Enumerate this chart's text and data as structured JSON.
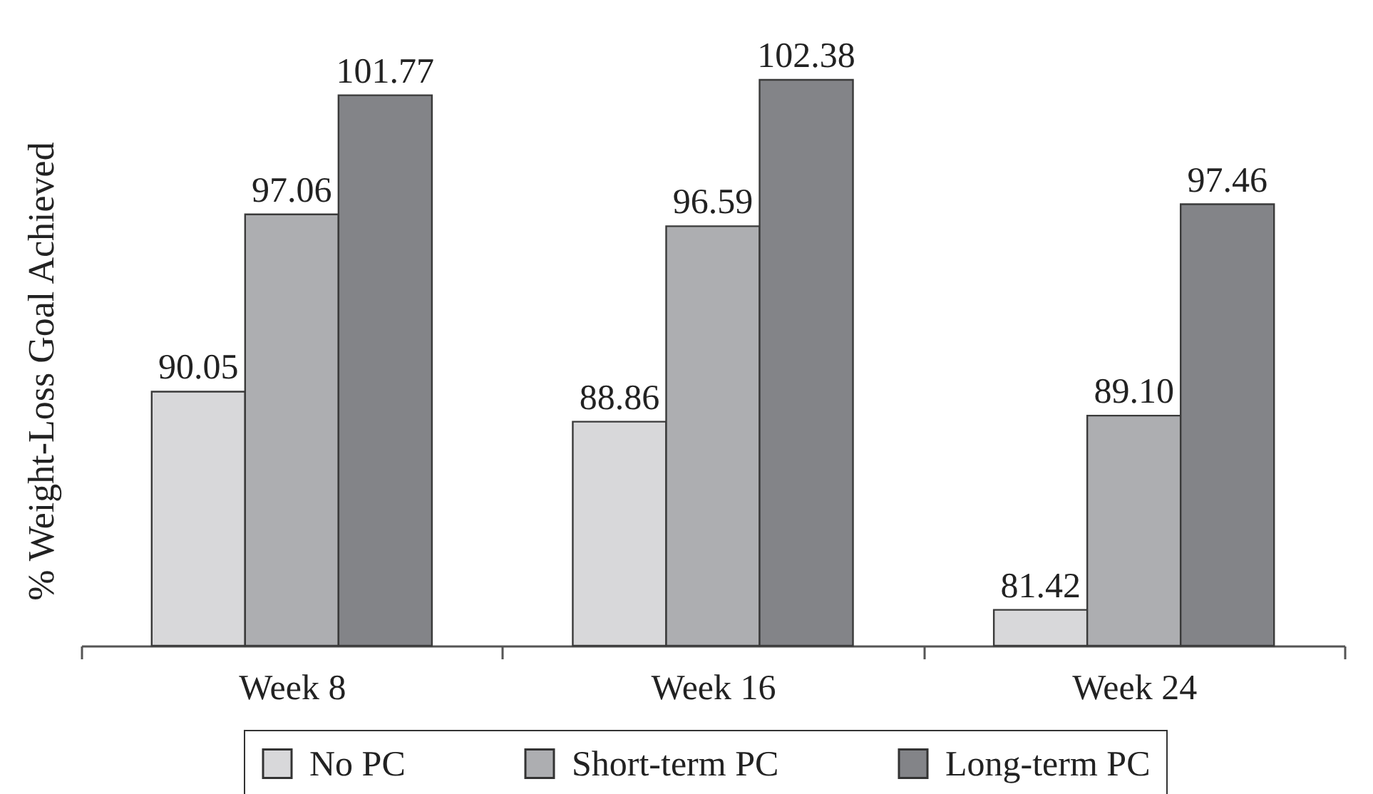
{
  "chart_data": {
    "type": "bar",
    "ylabel": "% Weight-Loss Goal Achieved",
    "categories": [
      "Week 8",
      "Week 16",
      "Week 24"
    ],
    "series": [
      {
        "name": "No PC",
        "color": "#d8d8da",
        "values": [
          90.05,
          88.86,
          81.42
        ],
        "value_labels": [
          "90.05",
          "88.86",
          "81.42"
        ]
      },
      {
        "name": "Short-term PC",
        "color": "#adaeb1",
        "values": [
          97.06,
          96.59,
          89.1
        ],
        "value_labels": [
          "97.06",
          "96.59",
          "89.10"
        ]
      },
      {
        "name": "Long-term PC",
        "color": "#838488",
        "values": [
          101.77,
          102.38,
          97.46
        ],
        "value_labels": [
          "101.77",
          "102.38",
          "97.46"
        ]
      }
    ],
    "ylim": [
      80,
      102.38
    ],
    "legend": "bottom"
  }
}
